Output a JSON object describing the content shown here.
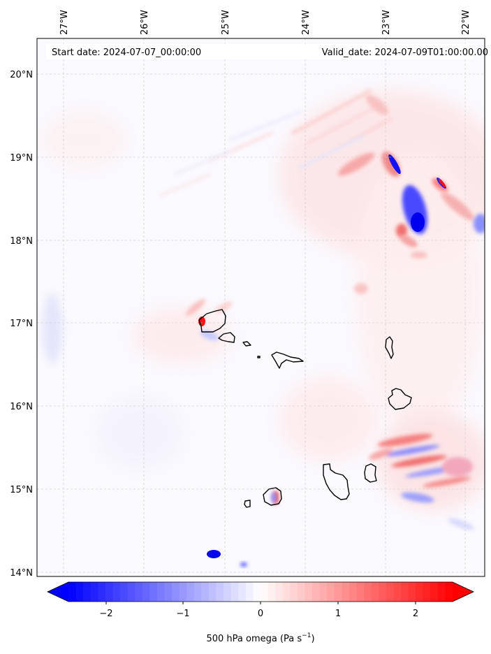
{
  "header": {
    "start_text": "Start date: 2024-07-07_00:00:00",
    "valid_text": "Valid_date: 2024-07-09T01:00:00.00"
  },
  "map": {
    "lon_range": [
      -27.35,
      -21.78
    ],
    "lat_range": [
      13.95,
      20.42
    ],
    "lon_ticks": [
      "27°W",
      "26°W",
      "25°W",
      "24°W",
      "23°W",
      "22°W"
    ],
    "lat_ticks": [
      "20°N",
      "19°N",
      "18°N",
      "17°N",
      "16°N",
      "15°N",
      "14°N"
    ],
    "gridlines": true,
    "variable": "500 hPa omega"
  },
  "colorbar": {
    "min": -2.6,
    "max": 2.6,
    "ticks": [
      "−2",
      "−1",
      "0",
      "1",
      "2"
    ],
    "label_main": "500 hPa omega (Pa s",
    "label_sup": "−1",
    "label_end": ")",
    "colormap": "bwr",
    "extend": "both",
    "neg_color": "#0000ff",
    "pos_color": "#ff0000",
    "mid_color": "#ffffff"
  }
}
